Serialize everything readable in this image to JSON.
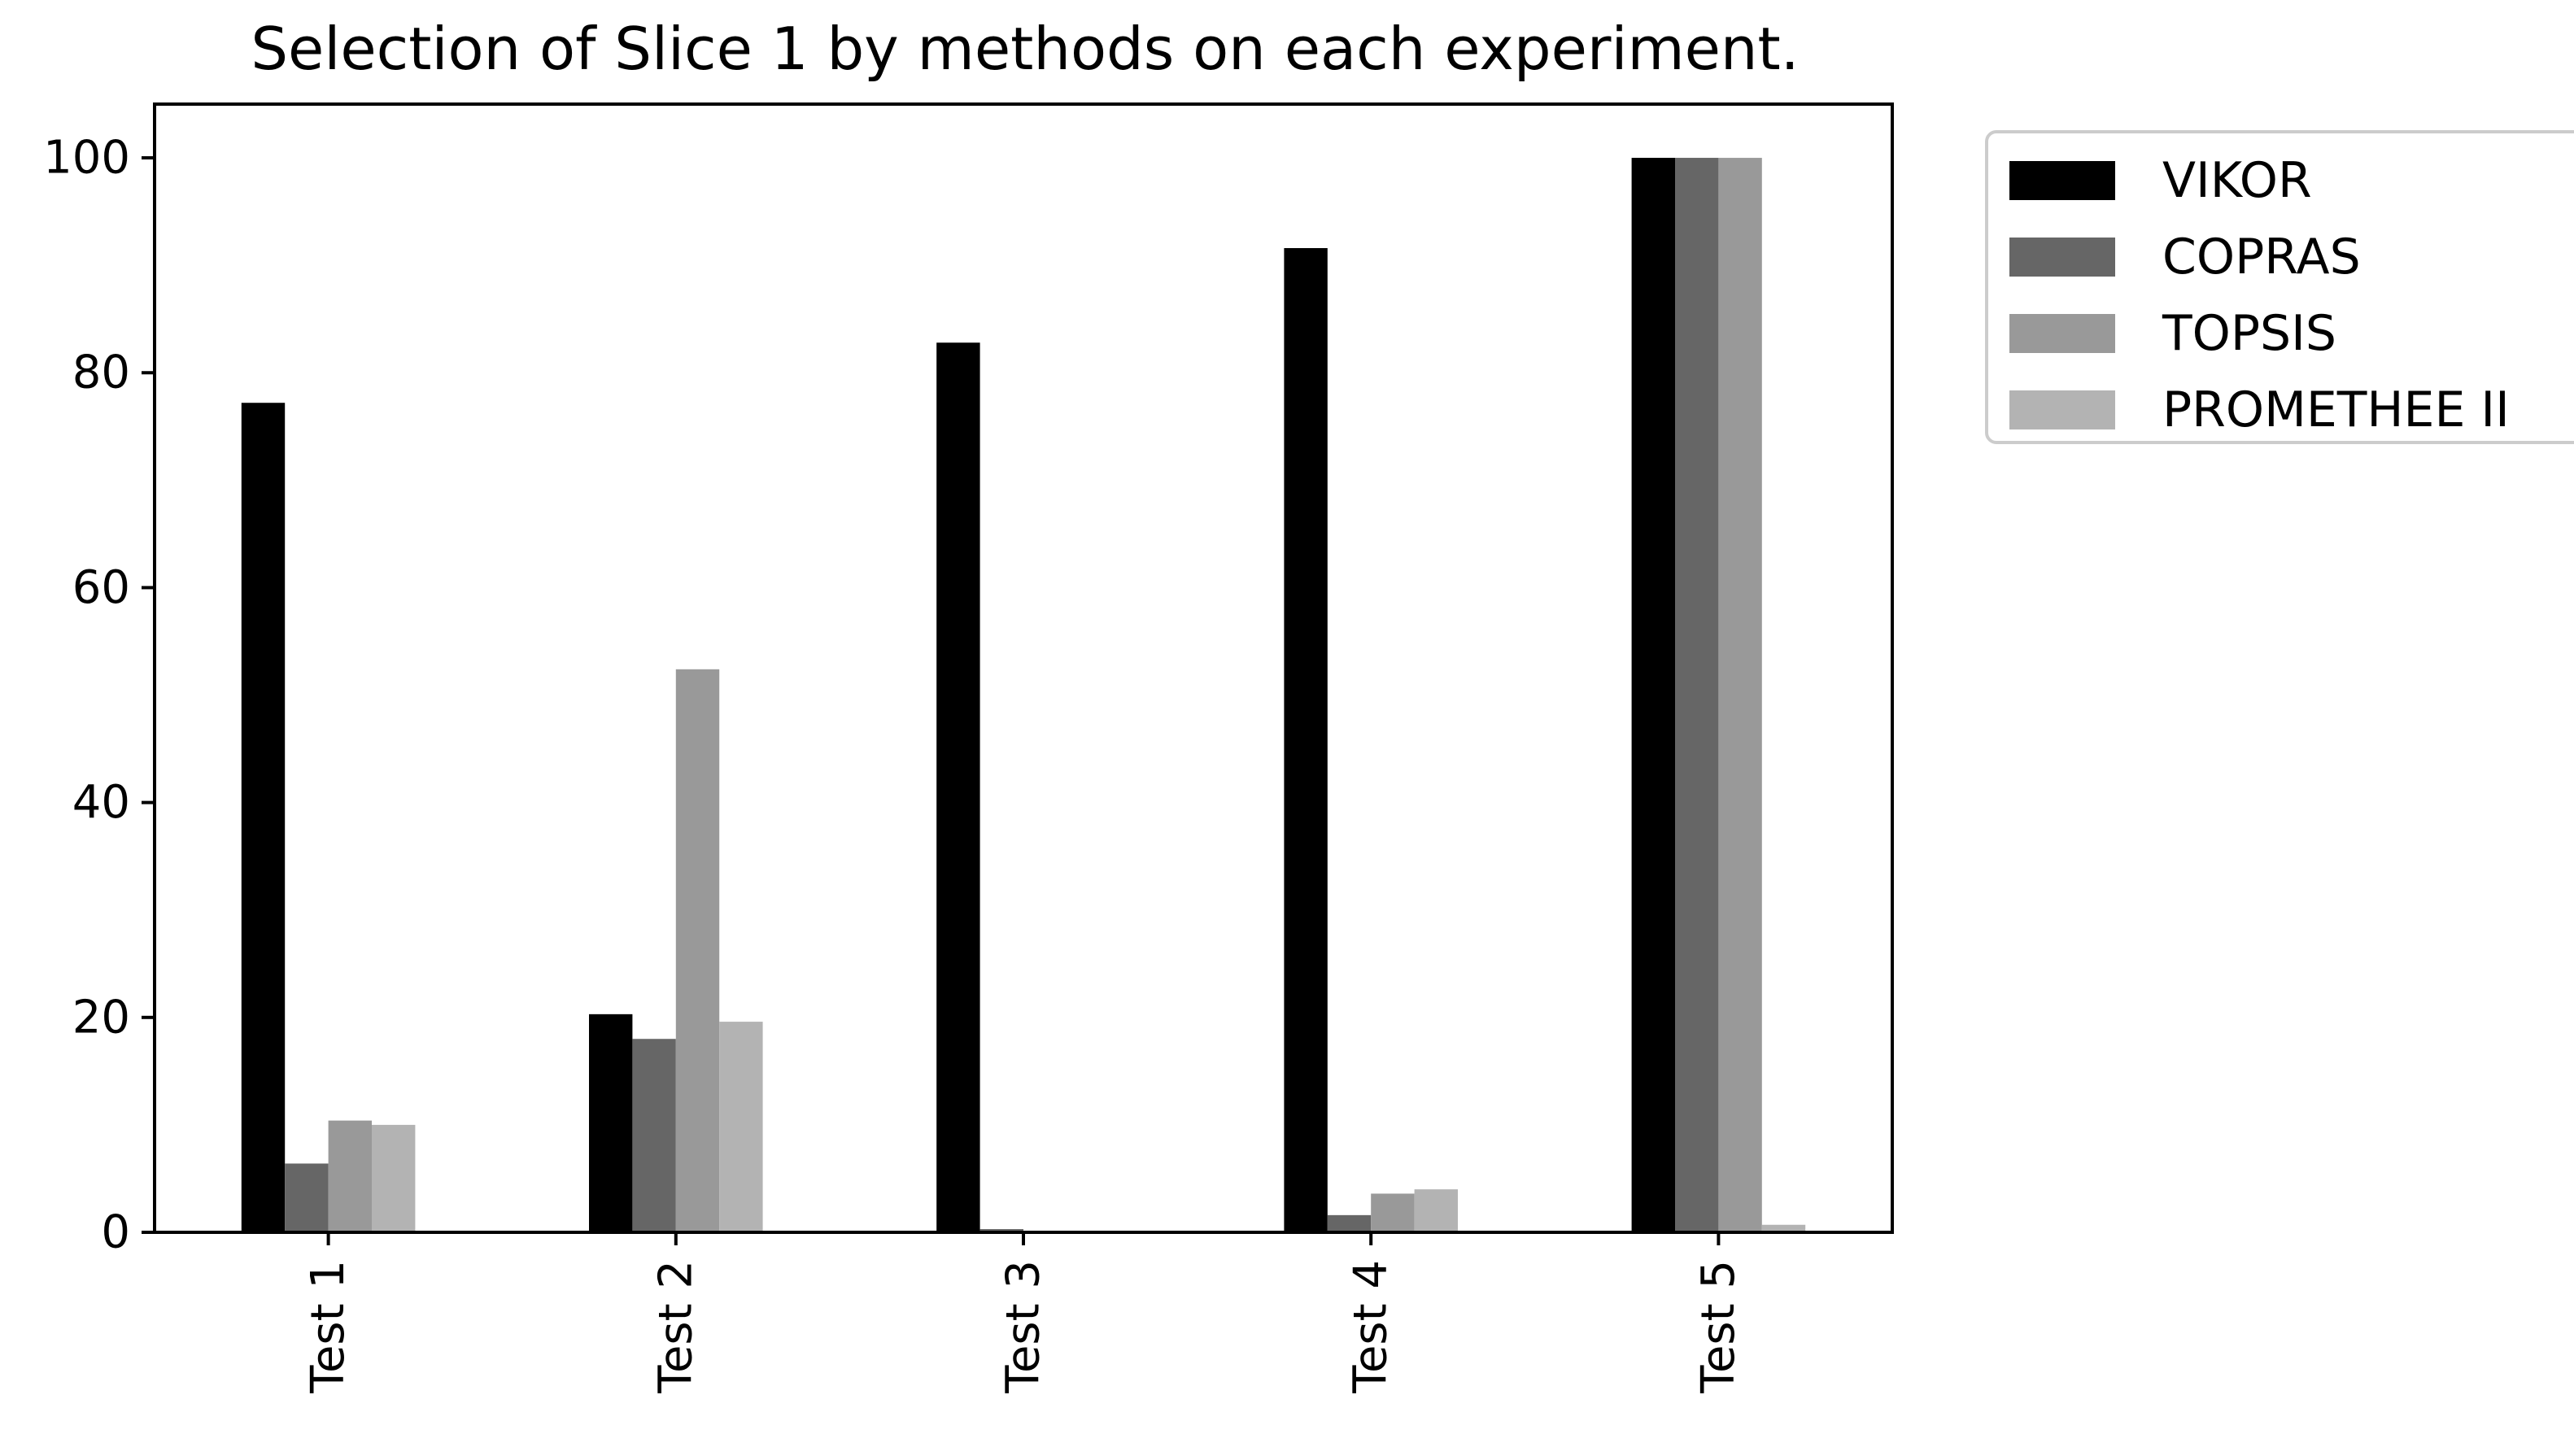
{
  "chart_data": {
    "type": "bar",
    "title": "Selection of Slice 1 by methods on each experiment.",
    "xlabel": "",
    "ylabel": "",
    "categories": [
      "Test 1",
      "Test 2",
      "Test 3",
      "Test 4",
      "Test 5"
    ],
    "ylim": [
      0,
      105
    ],
    "yticks": [
      0,
      20,
      40,
      60,
      80,
      100
    ],
    "grid": false,
    "legend_position": "outside-top-right",
    "series": [
      {
        "name": "VIKOR",
        "color": "#000000",
        "values": [
          77.2,
          20.3,
          82.8,
          91.6,
          100
        ]
      },
      {
        "name": "COPRAS",
        "color": "#666666",
        "values": [
          6.4,
          18.0,
          0.3,
          1.6,
          100
        ]
      },
      {
        "name": "TOPSIS",
        "color": "#999999",
        "values": [
          10.4,
          52.4,
          0,
          3.6,
          100
        ]
      },
      {
        "name": "PROMETHEE II",
        "color": "#b3b3b3",
        "values": [
          10.0,
          19.6,
          0,
          4.0,
          0.7
        ]
      }
    ]
  }
}
